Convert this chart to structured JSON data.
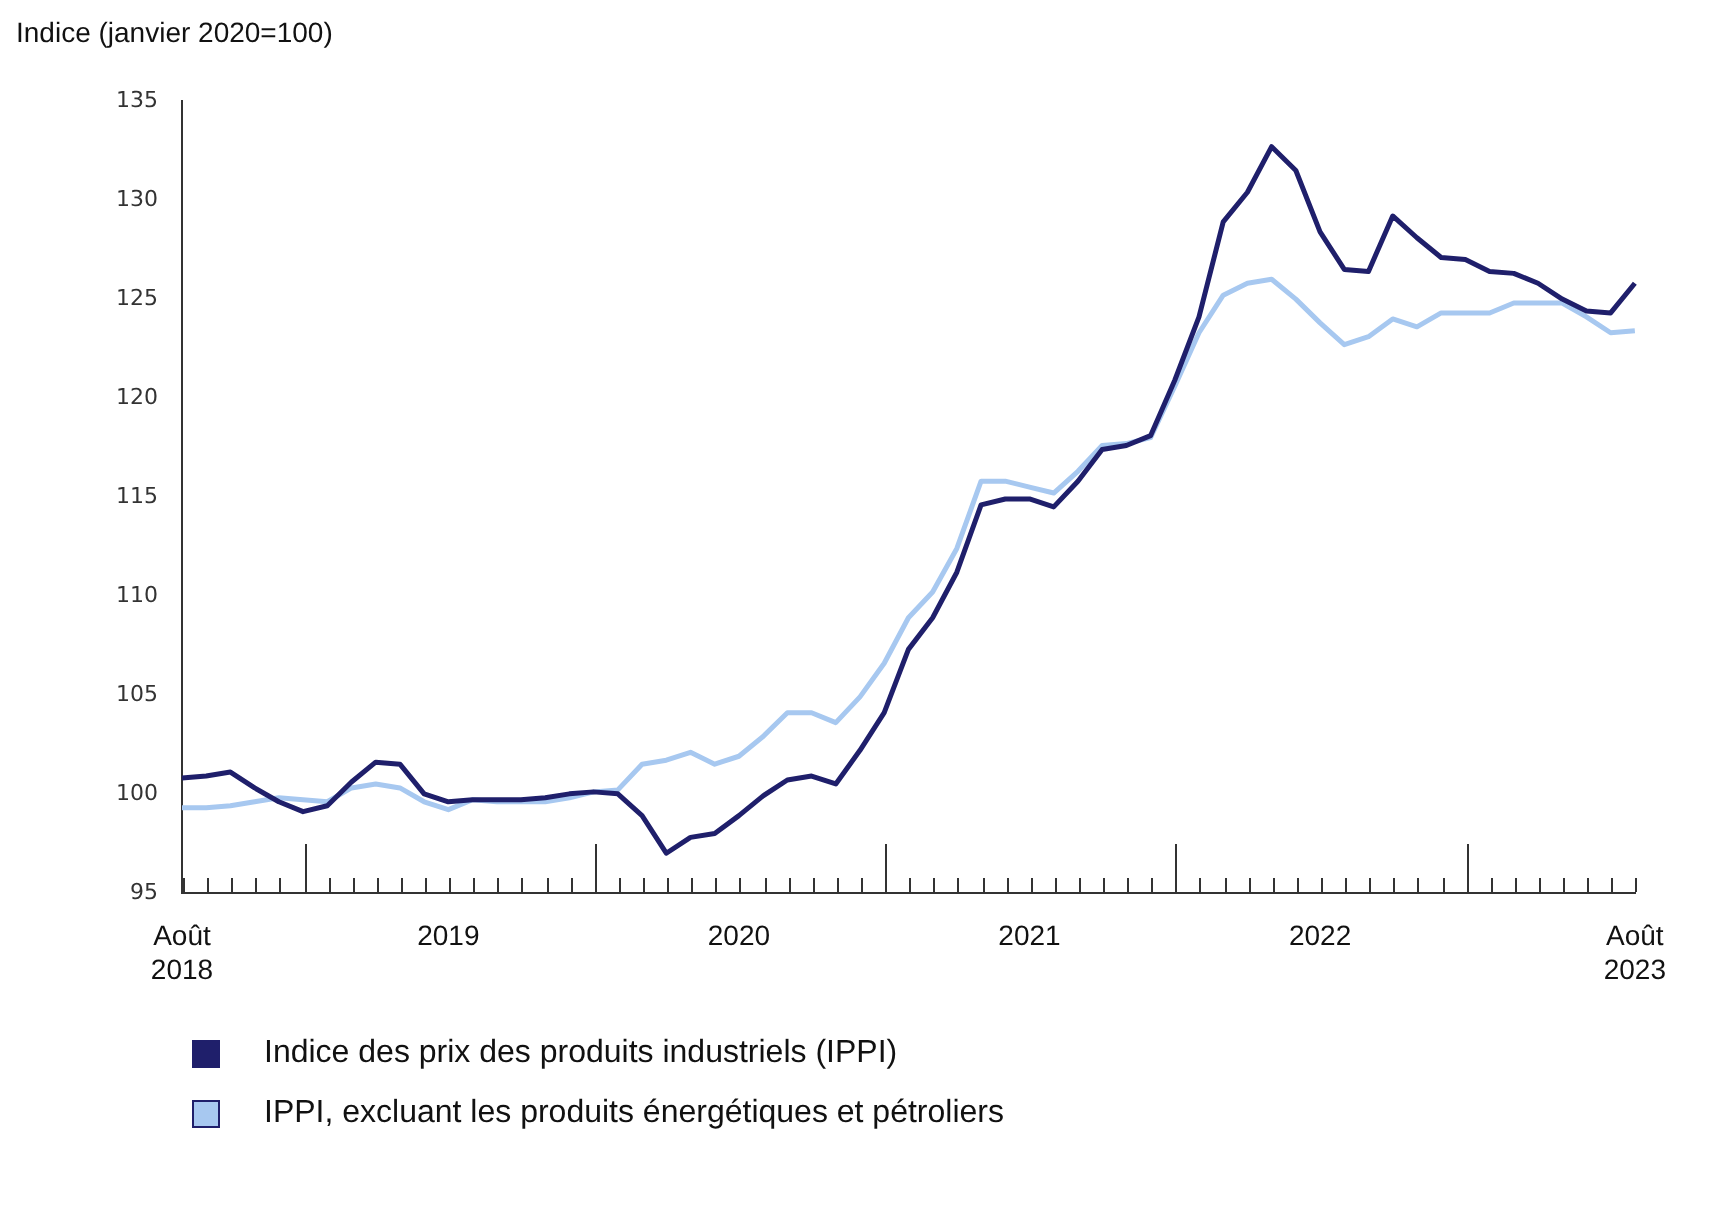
{
  "chart_data": {
    "type": "line",
    "ylabel": "Indice (janvier 2020=100)",
    "categories": [
      "Août 2018",
      null,
      null,
      null,
      null,
      null,
      null,
      null,
      null,
      null,
      null,
      "2019",
      null,
      null,
      null,
      null,
      null,
      null,
      null,
      null,
      null,
      null,
      null,
      "2020",
      null,
      null,
      null,
      null,
      null,
      null,
      null,
      null,
      null,
      null,
      null,
      "2021",
      null,
      null,
      null,
      null,
      null,
      null,
      null,
      null,
      null,
      null,
      null,
      "2022",
      null,
      null,
      null,
      null,
      null,
      null,
      null,
      null,
      null,
      null,
      null,
      null,
      "Août 2023"
    ],
    "series": [
      {
        "name": "Indice des prix des produits industriels (IPPI)",
        "color": "#1f1f6b",
        "values": [
          100.8,
          100.9,
          101.1,
          100.3,
          99.6,
          99.1,
          99.4,
          100.6,
          101.6,
          101.5,
          100.0,
          99.6,
          99.7,
          99.7,
          99.7,
          99.8,
          100.0,
          100.1,
          100.0,
          98.9,
          97.0,
          97.8,
          98.0,
          98.9,
          99.9,
          100.7,
          100.9,
          100.5,
          102.2,
          104.1,
          107.3,
          108.9,
          111.2,
          114.6,
          114.9,
          114.9,
          114.5,
          115.8,
          117.4,
          117.6,
          118.1,
          120.9,
          124.1,
          128.9,
          130.4,
          132.7,
          131.5,
          128.4,
          126.5,
          126.4,
          129.2,
          128.1,
          127.1,
          127.0,
          126.4,
          126.3,
          125.8,
          125.0,
          124.4,
          124.3,
          125.8
        ]
      },
      {
        "name": "IPPI, excluant les produits énergétiques et pétroliers",
        "color": "#a7c8f0",
        "values": [
          99.3,
          99.3,
          99.4,
          99.6,
          99.8,
          99.7,
          99.6,
          100.3,
          100.5,
          100.3,
          99.6,
          99.2,
          99.7,
          99.6,
          99.6,
          99.6,
          99.8,
          100.1,
          100.2,
          101.5,
          101.7,
          102.1,
          101.5,
          101.9,
          102.9,
          104.1,
          104.1,
          103.6,
          104.9,
          106.6,
          108.9,
          110.2,
          112.4,
          115.8,
          115.8,
          115.5,
          115.2,
          116.3,
          117.6,
          117.7,
          118.0,
          120.6,
          123.3,
          125.2,
          125.8,
          126.0,
          125.0,
          123.8,
          122.7,
          123.1,
          124.0,
          123.6,
          124.3,
          124.3,
          124.3,
          124.8,
          124.8,
          124.8,
          124.1,
          123.3,
          123.4
        ]
      }
    ],
    "ylim": [
      95,
      135
    ],
    "yticks": [
      95,
      100,
      105,
      110,
      115,
      120,
      125,
      130,
      135
    ],
    "legend": "bottom"
  }
}
